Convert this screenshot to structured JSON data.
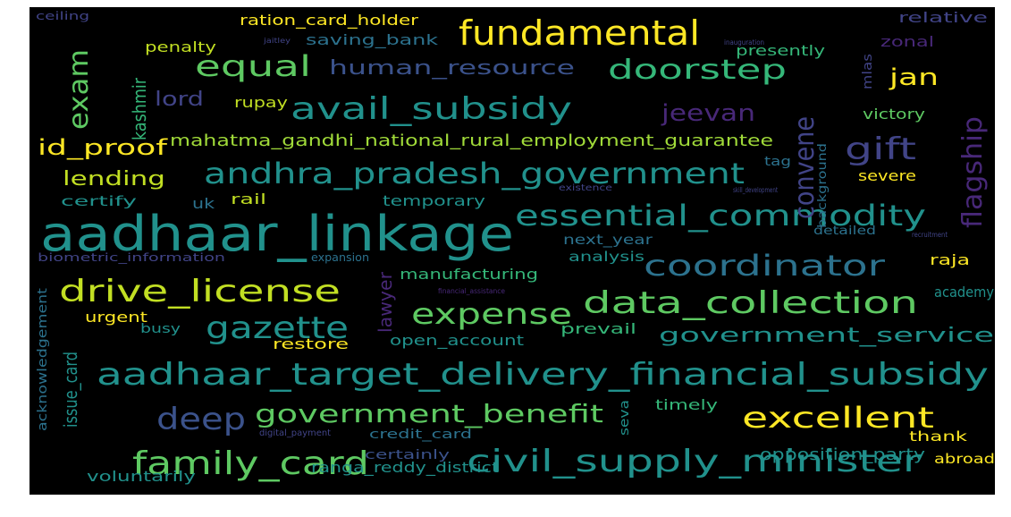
{
  "word_cloud": {
    "words": [
      "aadhaar_linkage",
      "aadhaar_target_delivery_financial_subsidy",
      "civil_supply_minister",
      "andhra_pradesh_government",
      "essential_commodity",
      "data_collection",
      "family_card",
      "drive_license",
      "fundamental",
      "avail_subsidy",
      "doorstep",
      "equal",
      "exam",
      "gazette",
      "expense",
      "coordinator",
      "deep",
      "government_benefit",
      "excellent",
      "gift",
      "convene",
      "flagship",
      "jeevan",
      "jan",
      "lord",
      "id_proof",
      "lending",
      "human_resource",
      "kashmir",
      "mahatma_gandhi_national_rural_employment_guarantee",
      "government_service",
      "lawyer",
      "issue_card",
      "opposition_party",
      "ranga_reddy_district",
      "voluntarily",
      "penalty",
      "ration_card_holder",
      "presently",
      "saving_bank",
      "rupay",
      "temporary",
      "rail",
      "uk",
      "certify",
      "next_year",
      "analysis",
      "manufacturing",
      "open_account",
      "prevail",
      "restore",
      "busy",
      "urgent",
      "timely",
      "seva",
      "credit_card",
      "certainly",
      "thank",
      "abroad",
      "raja",
      "academy",
      "victory",
      "severe",
      "tag",
      "background",
      "mlas",
      "zonal",
      "relative",
      "ceiling",
      "detailed",
      "acknowledgement",
      "biometric_information",
      "expansion",
      "jaitley",
      "inauguration",
      "financial_assistance",
      "digital_payment",
      "skill_development",
      "existence",
      "recruitment"
    ]
  }
}
